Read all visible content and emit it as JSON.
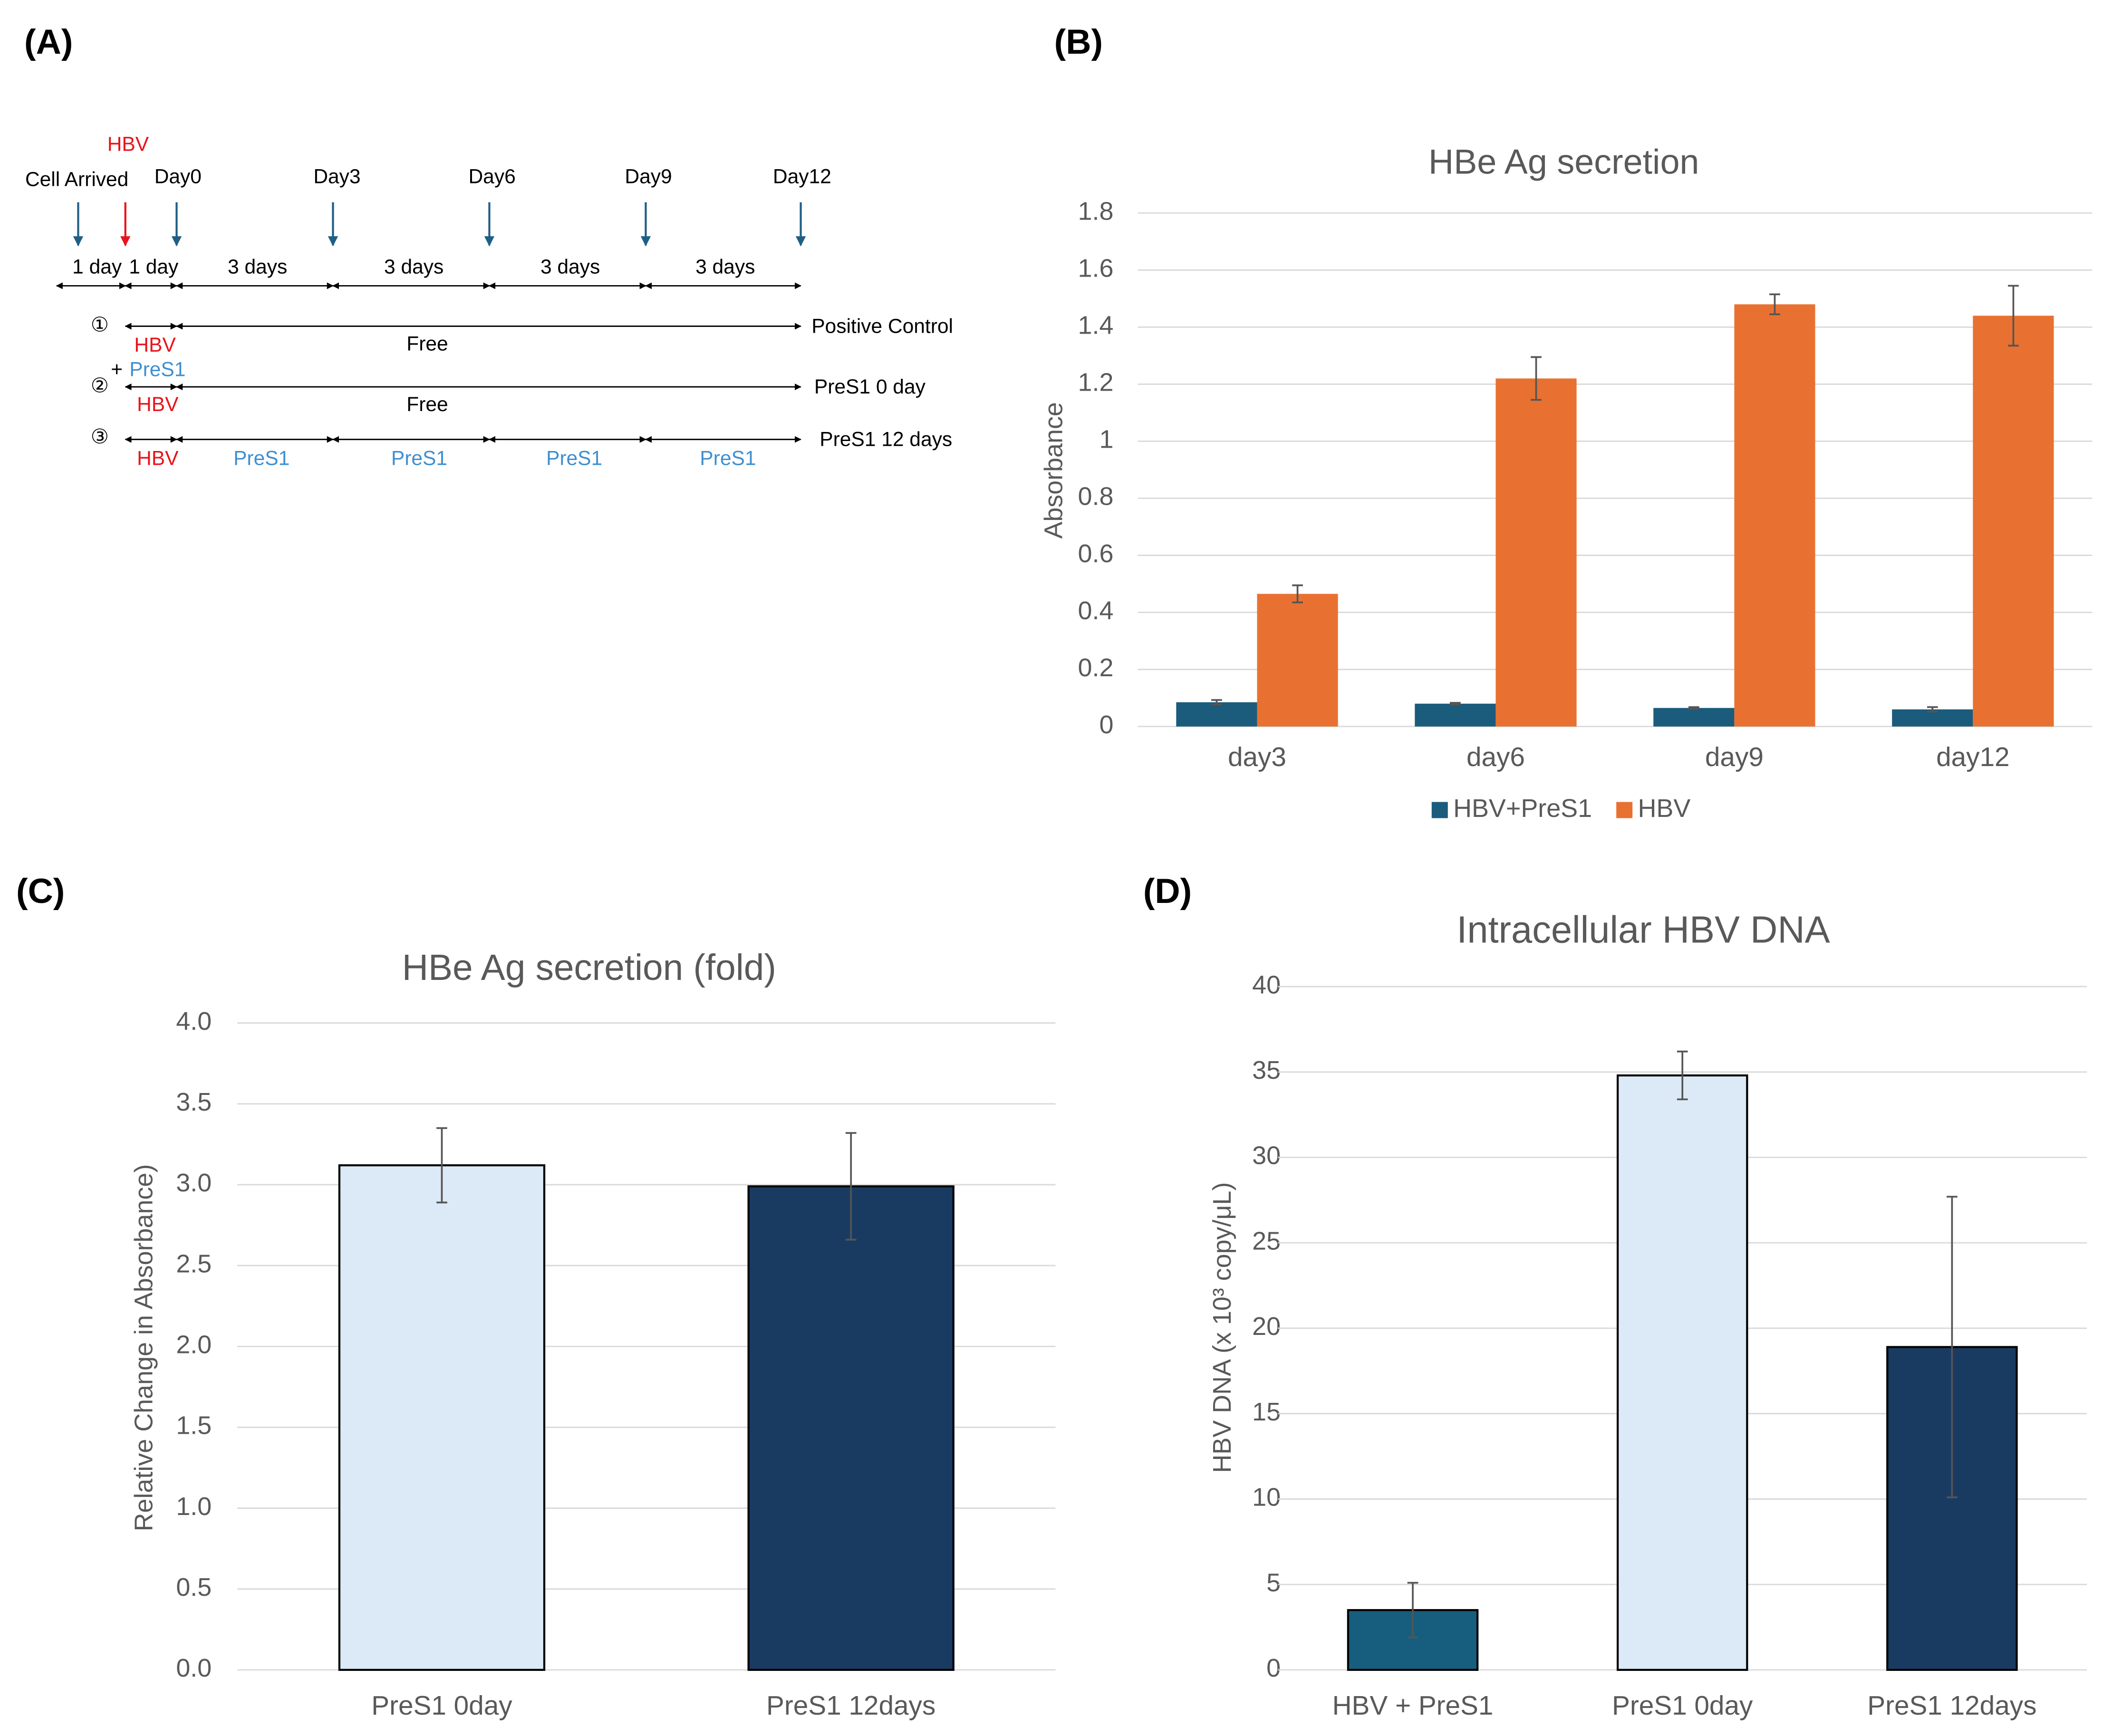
{
  "panel_labels": [
    "(A)",
    "(B)",
    "(C)",
    "(D)"
  ],
  "timeline": {
    "hbv_top": "HBV",
    "cell_arrived": "Cell Arrived",
    "days": [
      "Day0",
      "Day3",
      "Day6",
      "Day9",
      "Day12"
    ],
    "intervals": [
      "1 day",
      "1 day",
      "3 days",
      "3 days",
      "3 days",
      "3 days"
    ],
    "rows": [
      {
        "marker": "①",
        "hbv": "HBV",
        "phases": [
          "Free"
        ],
        "label": "Positive Control"
      },
      {
        "marker": "②",
        "plus": "+",
        "pres1": "PreS1",
        "hbv": "HBV",
        "phases": [
          "Free"
        ],
        "label": "PreS1 0 day"
      },
      {
        "marker": "③",
        "hbv": "HBV",
        "phases": [
          "PreS1",
          "PreS1",
          "PreS1",
          "PreS1"
        ],
        "label": "PreS1 12 days"
      }
    ]
  },
  "chart_data": [
    {
      "type": "bar",
      "title": "HBe Ag secretion",
      "y_label": "Absorbance",
      "categories": [
        "day3",
        "day6",
        "day9",
        "day12"
      ],
      "series": [
        {
          "name": "HBV+PreS1",
          "color": "#1b5b7c",
          "values": [
            0.085,
            0.08,
            0.065,
            0.06
          ],
          "errors": [
            0.008,
            0.003,
            0.003,
            0.008
          ]
        },
        {
          "name": "HBV",
          "color": "#e87131",
          "values": [
            0.465,
            1.22,
            1.48,
            1.44
          ],
          "errors": [
            0.03,
            0.075,
            0.035,
            0.105
          ]
        }
      ],
      "ylim": [
        0,
        1.8
      ],
      "yticks": [
        0,
        0.2,
        0.4,
        0.6,
        0.8,
        1,
        1.2,
        1.4,
        1.6,
        1.8
      ],
      "grid": true,
      "legend": "bottom"
    },
    {
      "type": "bar",
      "title": "HBe Ag secretion (fold)",
      "y_label": "Relative Change in Absorbance)",
      "categories": [
        "PreS1 0day",
        "PreS1 12days"
      ],
      "values": [
        3.12,
        2.99
      ],
      "errors": [
        0.23,
        0.33
      ],
      "colors": [
        "#dce9f6",
        "#1a3b61"
      ],
      "bar_edge_color": "#000000",
      "ylim": [
        0,
        4
      ],
      "yticks": [
        {
          "value": 0,
          "label": "0.0"
        },
        {
          "value": 0.5,
          "label": "0.5"
        },
        {
          "value": 1,
          "label": "1.0"
        },
        {
          "value": 1.5,
          "label": "1.5"
        },
        {
          "value": 2,
          "label": "2.0"
        },
        {
          "value": 2.5,
          "label": "2.5"
        },
        {
          "value": 3,
          "label": "3.0"
        },
        {
          "value": 3.5,
          "label": "3.5"
        },
        {
          "value": 4,
          "label": "4.0"
        }
      ],
      "grid": true
    },
    {
      "type": "bar",
      "title": "Intracellular HBV DNA",
      "y_label": "HBV DNA (x 10³ copy/μL)",
      "categories": [
        "HBV + PreS1",
        "PreS1 0day",
        "PreS1 12days"
      ],
      "values": [
        3.5,
        34.8,
        18.9
      ],
      "errors": [
        1.6,
        1.4,
        8.8
      ],
      "colors": [
        "#175d7e",
        "#dce9f6",
        "#1a3b61"
      ],
      "bar_edge_color": "#000000",
      "ylim": [
        0,
        40
      ],
      "yticks": [
        0,
        5,
        10,
        15,
        20,
        25,
        30,
        35,
        40
      ],
      "grid": true
    }
  ]
}
